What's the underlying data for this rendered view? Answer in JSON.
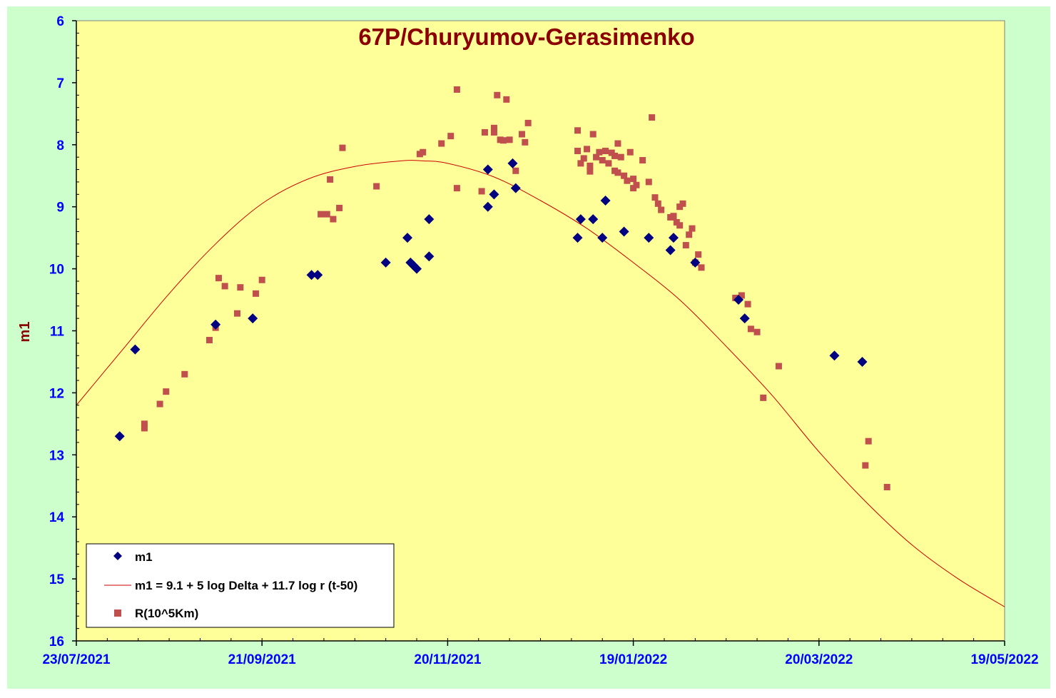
{
  "chart_data": {
    "type": "scatter",
    "title": "67P/Churyumov-Gerasimenko",
    "xlabel": "",
    "ylabel": "m1",
    "x_axis": {
      "type": "date",
      "min": "2021-07-23",
      "max": "2022-05-19",
      "tick_labels": [
        "23/07/2021",
        "21/09/2021",
        "20/11/2021",
        "19/01/2022",
        "20/03/2022",
        "19/05/2022"
      ],
      "tick_dates": [
        "2021-07-23",
        "2021-09-21",
        "2021-11-20",
        "2022-01-19",
        "2022-03-20",
        "2022-05-19"
      ]
    },
    "y_axis": {
      "inverted": true,
      "min": 6,
      "max": 16,
      "tick_labels": [
        "6",
        "7",
        "8",
        "9",
        "10",
        "11",
        "12",
        "13",
        "14",
        "15",
        "16"
      ]
    },
    "grid": false,
    "legend": {
      "position": "bottom-left",
      "entries": [
        "m1",
        "m1 = 9.1 + 5 log Delta + 11.7 log r (t-50)",
        "R(10^5Km)"
      ]
    },
    "colors": {
      "outer_background": "#ccffcc",
      "plot_background": "#ffff99",
      "m1_marker": "#000080",
      "fit_line": "#cc0000",
      "r_marker": "#c0504d"
    },
    "series": [
      {
        "name": "m1",
        "marker": "diamond",
        "points": [
          [
            "2021-08-06",
            12.7
          ],
          [
            "2021-08-11",
            11.3
          ],
          [
            "2021-09-06",
            10.9
          ],
          [
            "2021-09-18",
            10.8
          ],
          [
            "2021-10-07",
            10.1
          ],
          [
            "2021-10-09",
            10.1
          ],
          [
            "2021-10-31",
            9.9
          ],
          [
            "2021-11-07",
            9.5
          ],
          [
            "2021-11-08",
            9.9
          ],
          [
            "2021-11-09",
            9.95
          ],
          [
            "2021-11-10",
            10.0
          ],
          [
            "2021-11-14",
            9.2
          ],
          [
            "2021-11-14",
            9.8
          ],
          [
            "2021-12-03",
            8.4
          ],
          [
            "2021-12-03",
            9.0
          ],
          [
            "2021-12-05",
            8.8
          ],
          [
            "2021-12-11",
            8.3
          ],
          [
            "2021-12-12",
            8.7
          ],
          [
            "2022-01-01",
            9.5
          ],
          [
            "2022-01-02",
            9.2
          ],
          [
            "2022-01-06",
            9.2
          ],
          [
            "2022-01-09",
            9.5
          ],
          [
            "2022-01-10",
            8.9
          ],
          [
            "2022-01-16",
            9.4
          ],
          [
            "2022-01-24",
            9.5
          ],
          [
            "2022-01-31",
            9.7
          ],
          [
            "2022-02-01",
            9.5
          ],
          [
            "2022-02-08",
            9.9
          ],
          [
            "2022-02-22",
            10.5
          ],
          [
            "2022-02-24",
            10.8
          ],
          [
            "2022-03-25",
            11.4
          ],
          [
            "2022-04-03",
            11.5
          ]
        ]
      },
      {
        "name": "m1 = 9.1 + 5 log Delta + 11.7 log r (t-50)",
        "type": "line",
        "points": [
          [
            "2021-07-23",
            12.2
          ],
          [
            "2021-08-07",
            11.3
          ],
          [
            "2021-08-22",
            10.4
          ],
          [
            "2021-09-06",
            9.6
          ],
          [
            "2021-09-21",
            8.95
          ],
          [
            "2021-10-06",
            8.55
          ],
          [
            "2021-10-21",
            8.35
          ],
          [
            "2021-11-05",
            8.26
          ],
          [
            "2021-11-12",
            8.26
          ],
          [
            "2021-11-20",
            8.3
          ],
          [
            "2021-12-05",
            8.52
          ],
          [
            "2021-12-20",
            8.9
          ],
          [
            "2022-01-04",
            9.35
          ],
          [
            "2022-01-19",
            9.9
          ],
          [
            "2022-02-03",
            10.5
          ],
          [
            "2022-02-18",
            11.25
          ],
          [
            "2022-03-05",
            12.05
          ],
          [
            "2022-03-20",
            12.95
          ],
          [
            "2022-04-04",
            13.75
          ],
          [
            "2022-04-19",
            14.45
          ],
          [
            "2022-05-04",
            15.0
          ],
          [
            "2022-05-19",
            15.45
          ]
        ]
      },
      {
        "name": "R(10^5Km)",
        "marker": "square",
        "points": [
          [
            "2021-08-14",
            12.5
          ],
          [
            "2021-08-14",
            12.57
          ],
          [
            "2021-08-19",
            12.18
          ],
          [
            "2021-08-21",
            11.98
          ],
          [
            "2021-08-27",
            11.7
          ],
          [
            "2021-09-04",
            11.15
          ],
          [
            "2021-09-06",
            10.95
          ],
          [
            "2021-09-07",
            10.15
          ],
          [
            "2021-09-09",
            10.28
          ],
          [
            "2021-09-13",
            10.72
          ],
          [
            "2021-09-14",
            10.3
          ],
          [
            "2021-09-19",
            10.4
          ],
          [
            "2021-09-21",
            10.18
          ],
          [
            "2021-10-10",
            9.12
          ],
          [
            "2021-10-12",
            9.12
          ],
          [
            "2021-10-13",
            8.56
          ],
          [
            "2021-10-14",
            9.2
          ],
          [
            "2021-10-16",
            9.02
          ],
          [
            "2021-10-17",
            8.05
          ],
          [
            "2021-10-28",
            8.67
          ],
          [
            "2021-11-11",
            8.15
          ],
          [
            "2021-11-12",
            8.12
          ],
          [
            "2021-11-18",
            7.98
          ],
          [
            "2021-11-21",
            7.86
          ],
          [
            "2021-11-23",
            7.11
          ],
          [
            "2021-11-23",
            8.7
          ],
          [
            "2021-12-01",
            8.75
          ],
          [
            "2021-12-02",
            7.8
          ],
          [
            "2021-12-05",
            7.73
          ],
          [
            "2021-12-05",
            7.8
          ],
          [
            "2021-12-06",
            7.2
          ],
          [
            "2021-12-07",
            7.92
          ],
          [
            "2021-12-08",
            7.93
          ],
          [
            "2021-12-09",
            7.27
          ],
          [
            "2021-12-10",
            7.92
          ],
          [
            "2021-12-12",
            8.42
          ],
          [
            "2021-12-14",
            7.83
          ],
          [
            "2021-12-15",
            7.96
          ],
          [
            "2021-12-16",
            7.65
          ],
          [
            "2022-01-01",
            7.77
          ],
          [
            "2022-01-01",
            8.1
          ],
          [
            "2022-01-02",
            8.3
          ],
          [
            "2022-01-03",
            8.22
          ],
          [
            "2022-01-04",
            8.07
          ],
          [
            "2022-01-05",
            8.34
          ],
          [
            "2022-01-05",
            8.43
          ],
          [
            "2022-01-06",
            7.83
          ],
          [
            "2022-01-07",
            8.2
          ],
          [
            "2022-01-08",
            8.12
          ],
          [
            "2022-01-09",
            8.25
          ],
          [
            "2022-01-10",
            8.1
          ],
          [
            "2022-01-11",
            8.3
          ],
          [
            "2022-01-12",
            8.13
          ],
          [
            "2022-01-13",
            8.18
          ],
          [
            "2022-01-13",
            8.42
          ],
          [
            "2022-01-14",
            7.98
          ],
          [
            "2022-01-14",
            8.45
          ],
          [
            "2022-01-15",
            8.2
          ],
          [
            "2022-01-16",
            8.5
          ],
          [
            "2022-01-17",
            8.58
          ],
          [
            "2022-01-18",
            8.12
          ],
          [
            "2022-01-19",
            8.55
          ],
          [
            "2022-01-19",
            8.7
          ],
          [
            "2022-01-20",
            8.65
          ],
          [
            "2022-01-22",
            8.25
          ],
          [
            "2022-01-24",
            8.6
          ],
          [
            "2022-01-25",
            7.56
          ],
          [
            "2022-01-26",
            8.85
          ],
          [
            "2022-01-27",
            8.95
          ],
          [
            "2022-01-28",
            9.05
          ],
          [
            "2022-01-31",
            9.17
          ],
          [
            "2022-02-01",
            9.15
          ],
          [
            "2022-02-02",
            9.25
          ],
          [
            "2022-02-03",
            9.0
          ],
          [
            "2022-02-03",
            9.3
          ],
          [
            "2022-02-04",
            8.95
          ],
          [
            "2022-02-05",
            9.62
          ],
          [
            "2022-02-06",
            9.45
          ],
          [
            "2022-02-07",
            9.35
          ],
          [
            "2022-02-08",
            9.9
          ],
          [
            "2022-02-09",
            9.77
          ],
          [
            "2022-02-10",
            9.98
          ],
          [
            "2022-02-21",
            10.47
          ],
          [
            "2022-02-23",
            10.43
          ],
          [
            "2022-02-25",
            10.57
          ],
          [
            "2022-02-26",
            10.97
          ],
          [
            "2022-02-28",
            11.02
          ],
          [
            "2022-03-02",
            12.08
          ],
          [
            "2022-03-07",
            11.57
          ],
          [
            "2022-04-04",
            13.17
          ],
          [
            "2022-04-05",
            12.78
          ],
          [
            "2022-04-11",
            13.52
          ]
        ]
      }
    ]
  }
}
